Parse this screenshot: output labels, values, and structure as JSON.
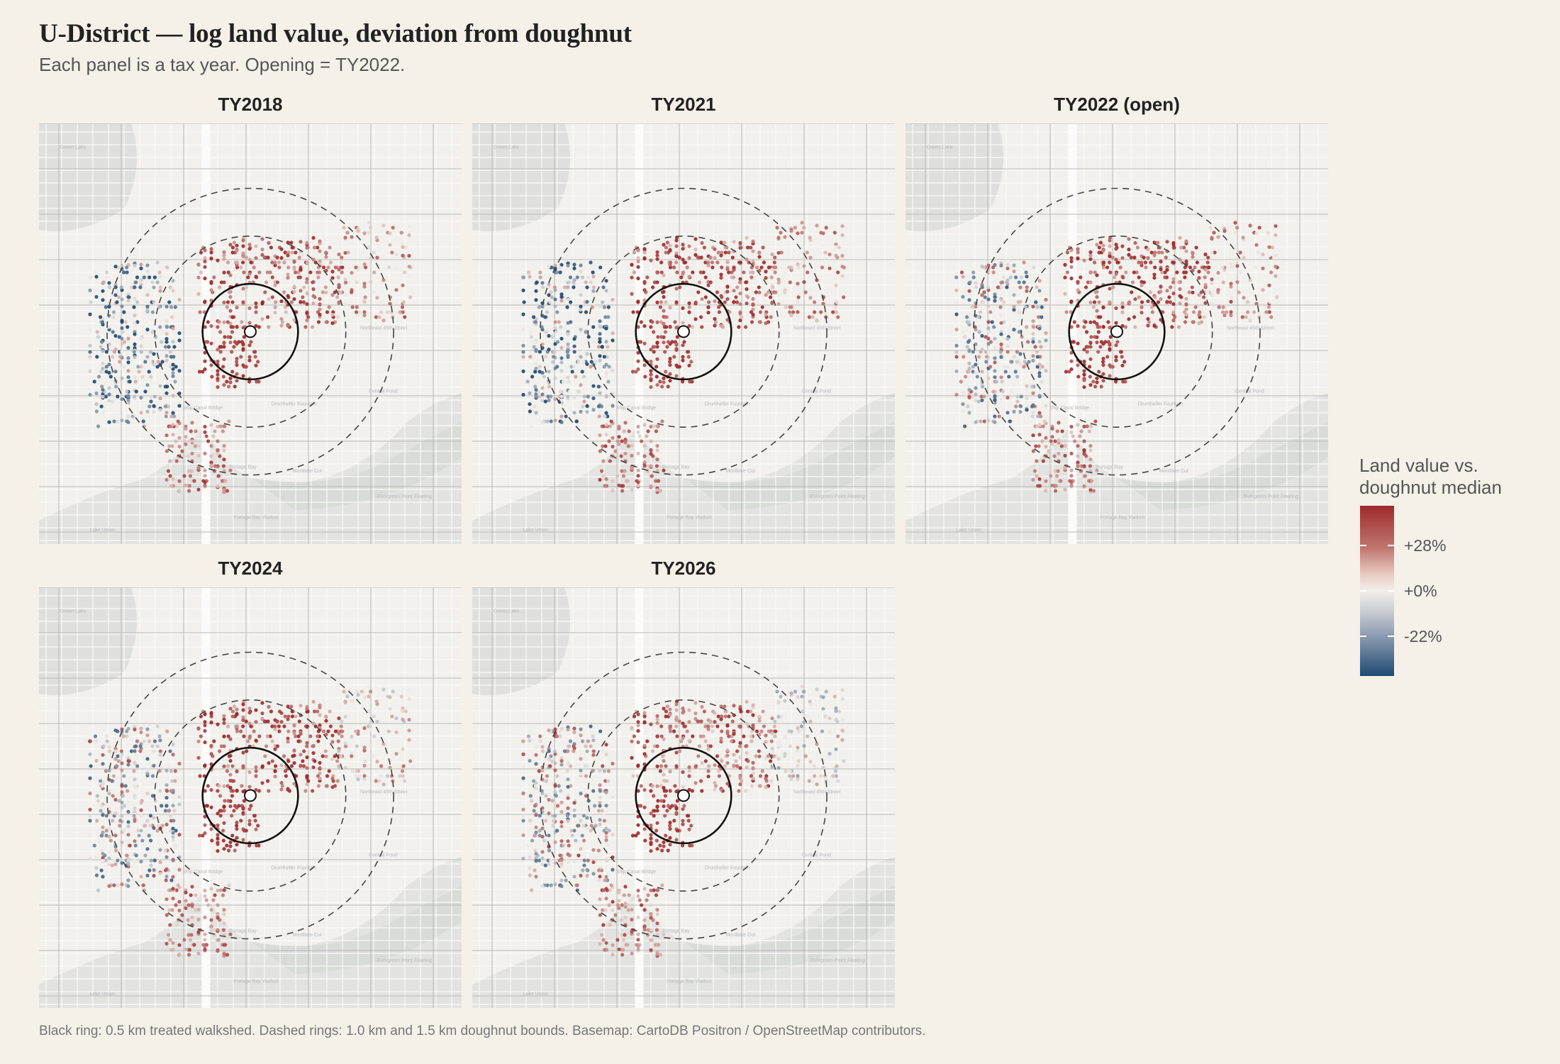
{
  "title": "U-District — log land value, deviation from doughnut",
  "subtitle": "Each panel is a tax year. Opening = TY2022.",
  "panels": [
    {
      "label": "TY2018"
    },
    {
      "label": "TY2021"
    },
    {
      "label": "TY2022 (open)"
    },
    {
      "label": "TY2024"
    },
    {
      "label": "TY2026"
    }
  ],
  "rings": {
    "treated_km": 0.5,
    "doughnut_inner_km": 1.0,
    "doughnut_outer_km": 1.5
  },
  "legend": {
    "title_line1": "Land value vs.",
    "title_line2": "doughnut median",
    "ticks": [
      "+28%",
      "+0%",
      "-22%"
    ],
    "colors": {
      "high": "#9e2a2b",
      "mid": "#f2efe9",
      "low": "#1f4a72"
    }
  },
  "basemap_labels": [
    "Green Lake",
    "Northeast 45th Street",
    "Drumheller Fountain",
    "Portage Bay",
    "Montlake Cut",
    "Central Pond",
    "Portage Bay Viaduct",
    "Evergreen Point Floating",
    "Lake Union",
    "Ship Canal Bridge"
  ],
  "caption": "Black ring: 0.5 km treated walkshed.  Dashed rings: 1.0 km and 1.5 km doughnut bounds.  Basemap: CartoDB Positron / OpenStreetMap contributors."
}
